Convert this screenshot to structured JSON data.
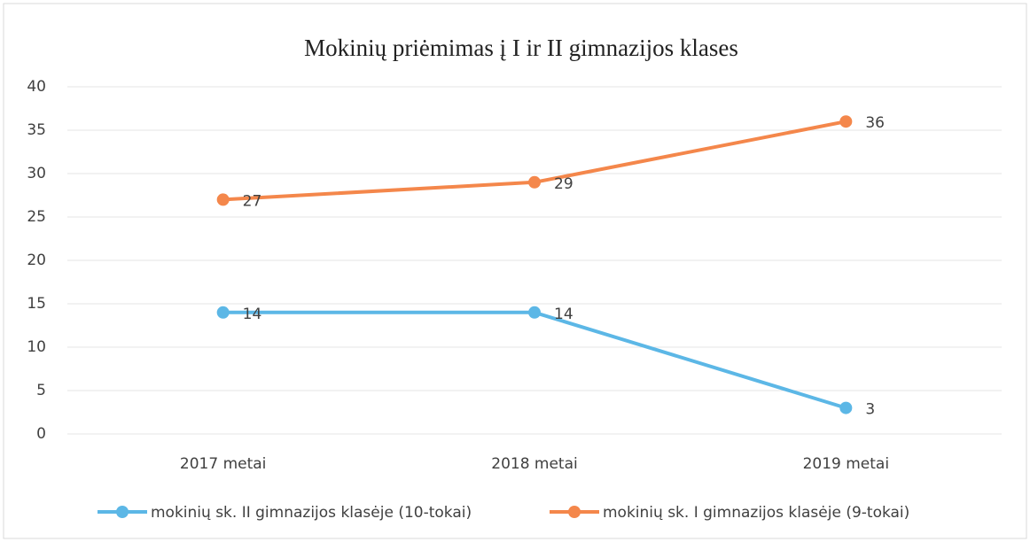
{
  "chart_data": {
    "type": "line",
    "title": "Mokinių priėmimas į I ir II gimnazijos klases",
    "categories": [
      "2017 metai",
      "2018 metai",
      "2019 metai"
    ],
    "series": [
      {
        "name": "mokinių sk. II gimnazijos klasėje (10-tokai)",
        "color": "#5cb7e6",
        "values": [
          14,
          14,
          3
        ]
      },
      {
        "name": "mokinių sk. I gimnazijos klasėje (9-tokai)",
        "color": "#f4874b",
        "values": [
          27,
          29,
          36
        ]
      }
    ],
    "ylim": [
      0,
      40
    ],
    "yticks": [
      0,
      5,
      10,
      15,
      20,
      25,
      30,
      35,
      40
    ],
    "grid": true,
    "legend": "bottom"
  }
}
